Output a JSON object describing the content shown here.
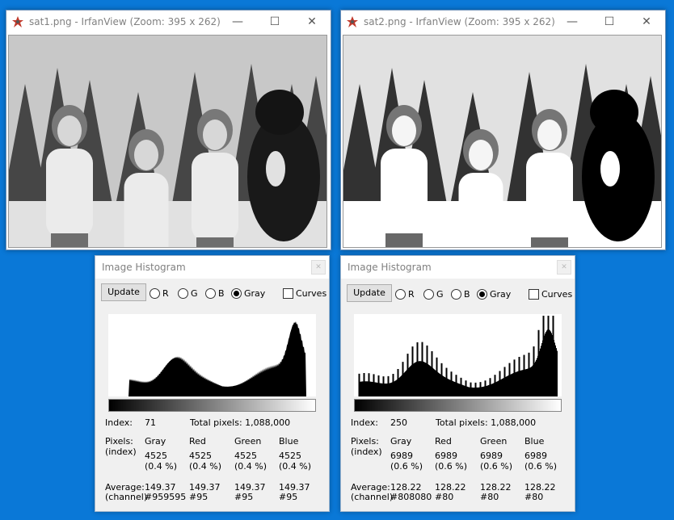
{
  "windows": [
    {
      "title": "sat1.png - IrfanView (Zoom: 395 x 262)",
      "controls": {
        "minimize": "—",
        "maximize": "☐",
        "close": "✕"
      },
      "icon": "irfanview-app-icon",
      "contrast": 1.0
    },
    {
      "title": "sat2.png - IrfanView (Zoom: 395 x 262)",
      "controls": {
        "minimize": "—",
        "maximize": "☐",
        "close": "✕"
      },
      "icon": "irfanview-app-icon",
      "contrast": 1.35
    }
  ],
  "histograms": [
    {
      "title": "Image Histogram",
      "close": "✕",
      "update_label": "Update",
      "channels": [
        "R",
        "G",
        "B",
        "Gray"
      ],
      "selected_channel": "Gray",
      "curves_label": "Curves",
      "curves_checked": false,
      "index_label": "Index:",
      "index_value": "71",
      "total_pixels": "Total pixels: 1,088,000",
      "pixels_label": "Pixels:",
      "pixels_label2": "(index)",
      "average_label": "Average:",
      "average_label2": "(channel)",
      "columns": [
        {
          "name": "Gray",
          "pixels": "4525",
          "pct": "(0.4 %)",
          "avg": "149.37",
          "hex": "#959595"
        },
        {
          "name": "Red",
          "pixels": "4525",
          "pct": "(0.4 %)",
          "avg": "149.37",
          "hex": "#95"
        },
        {
          "name": "Green",
          "pixels": "4525",
          "pct": "(0.4 %)",
          "avg": "149.37",
          "hex": "#95"
        },
        {
          "name": "Blue",
          "pixels": "4525",
          "pct": "(0.4 %)",
          "avg": "149.37",
          "hex": "#95"
        }
      ]
    },
    {
      "title": "Image Histogram",
      "close": "✕",
      "update_label": "Update",
      "channels": [
        "R",
        "G",
        "B",
        "Gray"
      ],
      "selected_channel": "Gray",
      "curves_label": "Curves",
      "curves_checked": false,
      "index_label": "Index:",
      "index_value": "250",
      "total_pixels": "Total pixels: 1,088,000",
      "pixels_label": "Pixels:",
      "pixels_label2": "(index)",
      "average_label": "Average:",
      "average_label2": "(channel)",
      "columns": [
        {
          "name": "Gray",
          "pixels": "6989",
          "pct": "(0.6 %)",
          "avg": "128.22",
          "hex": "#808080"
        },
        {
          "name": "Red",
          "pixels": "6989",
          "pct": "(0.6 %)",
          "avg": "128.22",
          "hex": "#80"
        },
        {
          "name": "Green",
          "pixels": "6989",
          "pct": "(0.6 %)",
          "avg": "128.22",
          "hex": "#80"
        },
        {
          "name": "Blue",
          "pixels": "6989",
          "pct": "(0.6 %)",
          "avg": "128.22",
          "hex": "#80"
        }
      ]
    }
  ],
  "colors": {
    "desktop": "#0a78d7",
    "window_border": "#6b8fb8",
    "histogram_fill": "#000000"
  }
}
